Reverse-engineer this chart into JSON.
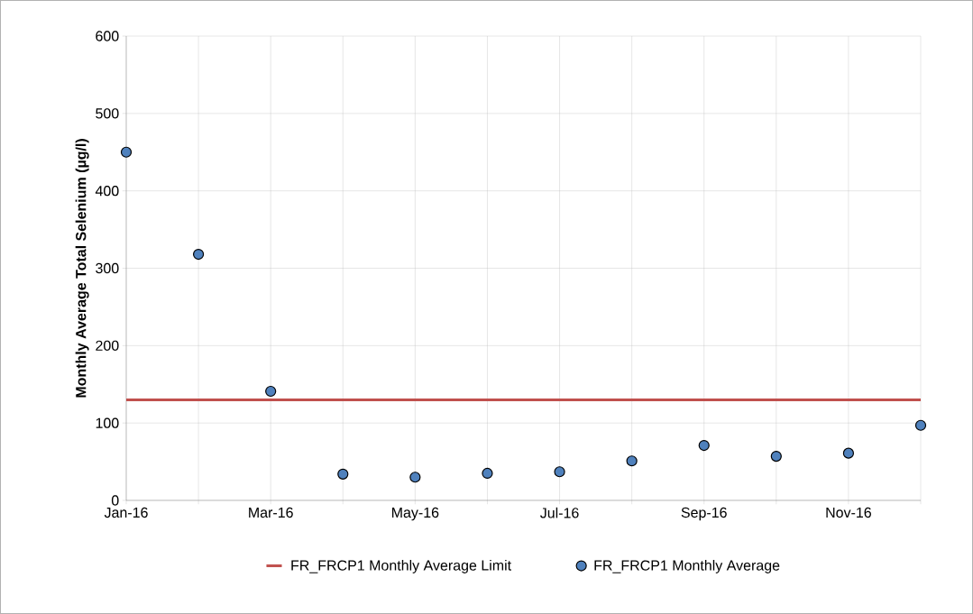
{
  "chart_data": {
    "type": "scatter",
    "ylabel": "Monthly Average Total Selenium (µg/l)",
    "categories": [
      "Jan-16",
      null,
      "Mar-16",
      null,
      "May-16",
      null,
      "Jul-16",
      null,
      "Sep-16",
      null,
      "Nov-16",
      null
    ],
    "series": [
      {
        "name": "FR_FRCP1 Monthly Average",
        "color": "#4f81bd",
        "values": [
          450,
          318,
          141,
          34,
          30,
          35,
          37,
          51,
          71,
          57,
          61,
          97
        ]
      }
    ],
    "ref_lines": [
      {
        "axis": "y",
        "value": 130,
        "label": "FR_FRCP1 Monthly Average Limit",
        "color": "#c0504d",
        "line_style": "solid"
      }
    ],
    "ylim": [
      0,
      600
    ],
    "yticks": [
      0,
      100,
      200,
      300,
      400,
      500,
      600
    ],
    "grid": true,
    "legend": "bottom",
    "marker": "circle"
  }
}
